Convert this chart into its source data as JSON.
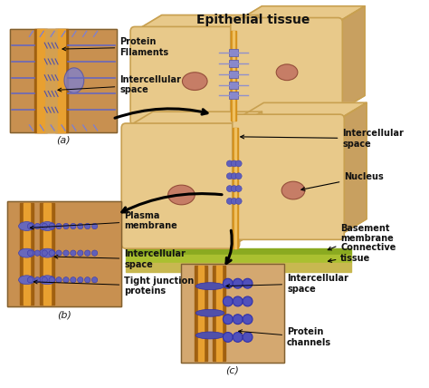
{
  "bg_color": "#ffffff",
  "title": "Epithelial tissue",
  "cell_color": "#e8c98a",
  "cell_dark": "#c8a060",
  "cell_border": "#c8a050",
  "membrane_color": "#d4901a",
  "membrane_light": "#f0c060",
  "nucleus_color": "#c07060",
  "nucleus_border": "#8a4030",
  "protein_fill": "#7070bb",
  "protein_dark": "#4040aa",
  "connective_color": "#88a030",
  "connective_light": "#aac040",
  "inset_a_bg": "#c89050",
  "inset_b_bg": "#c89050",
  "inset_c_bg": "#d4a870",
  "label_fontsize": 7.0,
  "label_bold": true,
  "title_fontsize": 10,
  "sub_fontsize": 8,
  "annotations": {
    "protein_filaments": "Protein\nFIlaments",
    "intercellular_space_a": "Intercellular\nspace",
    "intercellular_space_right": "Intercellular\nspace",
    "nucleus": "Nucleus",
    "basement_membrane": "Basement\nmembrane",
    "connective_tissue": "Connective\ntissue",
    "intercellular_space_c": "Intercellular\nspace",
    "protein_channels": "Protein\nchannels",
    "plasma_membrane": "Plasma\nmembrane",
    "intercellular_space_b": "Intercellular\nspace",
    "tight_junction": "Tight junction\nproteins"
  }
}
